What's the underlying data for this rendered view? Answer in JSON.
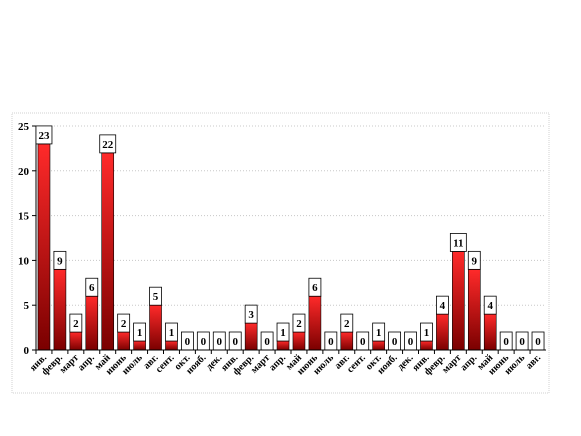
{
  "chart_data": {
    "type": "bar",
    "title": "",
    "xlabel": "",
    "ylabel": "",
    "ylim": [
      0,
      25
    ],
    "yticks": [
      0,
      5,
      10,
      15,
      20,
      25
    ],
    "grid": true,
    "legend": "none",
    "colors": {
      "bar_top": "#ff2a2a",
      "bar_bottom": "#7a0000",
      "label_box": "#ffffff",
      "plot_border": "#bdbdbd"
    },
    "categories": [
      "янв.",
      "февр.",
      "март",
      "апр.",
      "май",
      "июнь",
      "июль",
      "авг.",
      "сент.",
      "окт.",
      "нояб.",
      "дек.",
      "янв.",
      "февр.",
      "март",
      "апр.",
      "май",
      "июнь",
      "июль",
      "авг.",
      "сент.",
      "окт.",
      "нояб.",
      "дек.",
      "янв.",
      "февр.",
      "март",
      "апр.",
      "май",
      "июнь",
      "июль",
      "авг."
    ],
    "values": [
      23,
      9,
      2,
      6,
      22,
      2,
      1,
      5,
      1,
      0,
      0,
      0,
      0,
      3,
      0,
      1,
      2,
      6,
      0,
      2,
      0,
      1,
      0,
      0,
      1,
      4,
      11,
      9,
      4,
      0,
      0,
      0
    ]
  }
}
